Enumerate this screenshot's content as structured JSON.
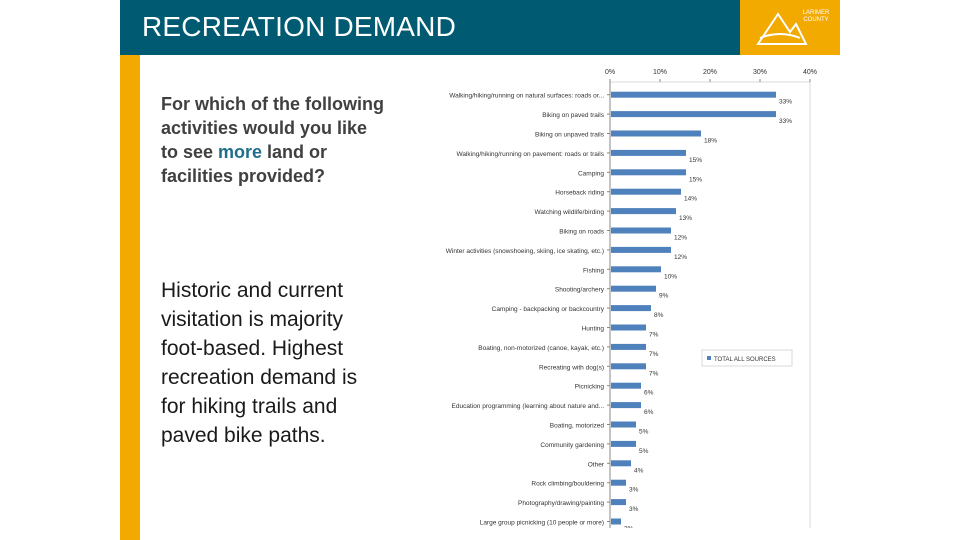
{
  "header": {
    "title": "RECREATION DEMAND",
    "logo_text": "LARIMER COUNTY"
  },
  "question": {
    "before": "For which of the following activities would you like to see ",
    "highlight": "more",
    "after": " land or facilities provided?"
  },
  "summary": "Historic and current visitation is majority foot-based. Highest recreation demand is for hiking trails and paved bike paths.",
  "colors": {
    "header_bg": "#005B72",
    "accent": "#F2A900",
    "bar": "#4F81BD",
    "highlight_text": "#1F6E8C"
  },
  "chart_data": {
    "type": "bar",
    "orientation": "horizontal",
    "categories": [
      "Walking/hiking/running on natural surfaces: roads or...",
      "Biking on paved trails",
      "Biking on unpaved trails",
      "Walking/hiking/running on pavement: roads or trails",
      "Camping",
      "Horseback riding",
      "Watching wildlife/birding",
      "Biking on roads",
      "Winter activities (snowshoeing, skiing, ice skating, etc.)",
      "Fishing",
      "Shooting/archery",
      "Camping - backpacking or backcountry",
      "Hunting",
      "Boating, non-motorized (canoe, kayak, etc.)",
      "Recreating with dog(s)",
      "Picnicking",
      "Education programming (learning about nature and...",
      "Boating, motorized",
      "Community gardening",
      "Other",
      "Rock climbing/bouldering",
      "Photography/drawing/painting",
      "Large group picnicking (10 people or more)"
    ],
    "series": [
      {
        "name": "TOTAL ALL SOURCES",
        "values": [
          33,
          33,
          18,
          15,
          15,
          14,
          13,
          12,
          12,
          10,
          9,
          8,
          7,
          7,
          7,
          6,
          6,
          5,
          5,
          4,
          3,
          3,
          2
        ]
      }
    ],
    "value_labels": [
      "33%",
      "33%",
      "18%",
      "15%",
      "15%",
      "14%",
      "13%",
      "12%",
      "12%",
      "10%",
      "9%",
      "8%",
      "7%",
      "7%",
      "7%",
      "6%",
      "6%",
      "5%",
      "5%",
      "4%",
      "3%",
      "3%",
      "2%"
    ],
    "x_ticks": [
      "0%",
      "10%",
      "20%",
      "30%",
      "40%"
    ],
    "xlim": [
      0,
      40
    ],
    "x_axis_position": "top",
    "legend_position": "right",
    "grid": false
  }
}
